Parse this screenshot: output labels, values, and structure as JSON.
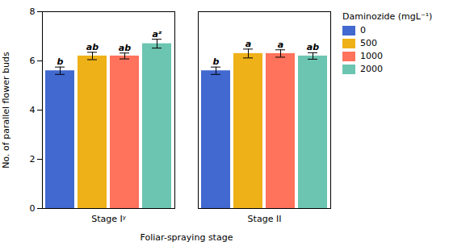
{
  "chart_data": {
    "type": "bar",
    "xlabel": "Foliar-spraying stage",
    "ylabel": "No. of parallel flower buds",
    "categories": [
      "Stage Iʸ",
      "Stage II"
    ],
    "series": [
      {
        "name": "0",
        "values": [
          5.6,
          5.6
        ],
        "errors": [
          0.15,
          0.15
        ],
        "annotations": [
          "b",
          "b"
        ]
      },
      {
        "name": "500",
        "values": [
          6.2,
          6.3
        ],
        "errors": [
          0.15,
          0.18
        ],
        "annotations": [
          "ab",
          "a"
        ]
      },
      {
        "name": "1000",
        "values": [
          6.2,
          6.3
        ],
        "errors": [
          0.12,
          0.15
        ],
        "annotations": [
          "ab",
          "a"
        ]
      },
      {
        "name": "2000",
        "values": [
          6.7,
          6.2
        ],
        "errors": [
          0.18,
          0.13
        ],
        "annotations": [
          "aᶻ",
          "ab"
        ]
      }
    ],
    "legend_title": "Daminozide (mgL⁻¹)",
    "legend": "upper right",
    "ylim": [
      0,
      8
    ],
    "yticks": [
      0,
      2,
      4,
      6,
      8
    ],
    "grid": false
  }
}
